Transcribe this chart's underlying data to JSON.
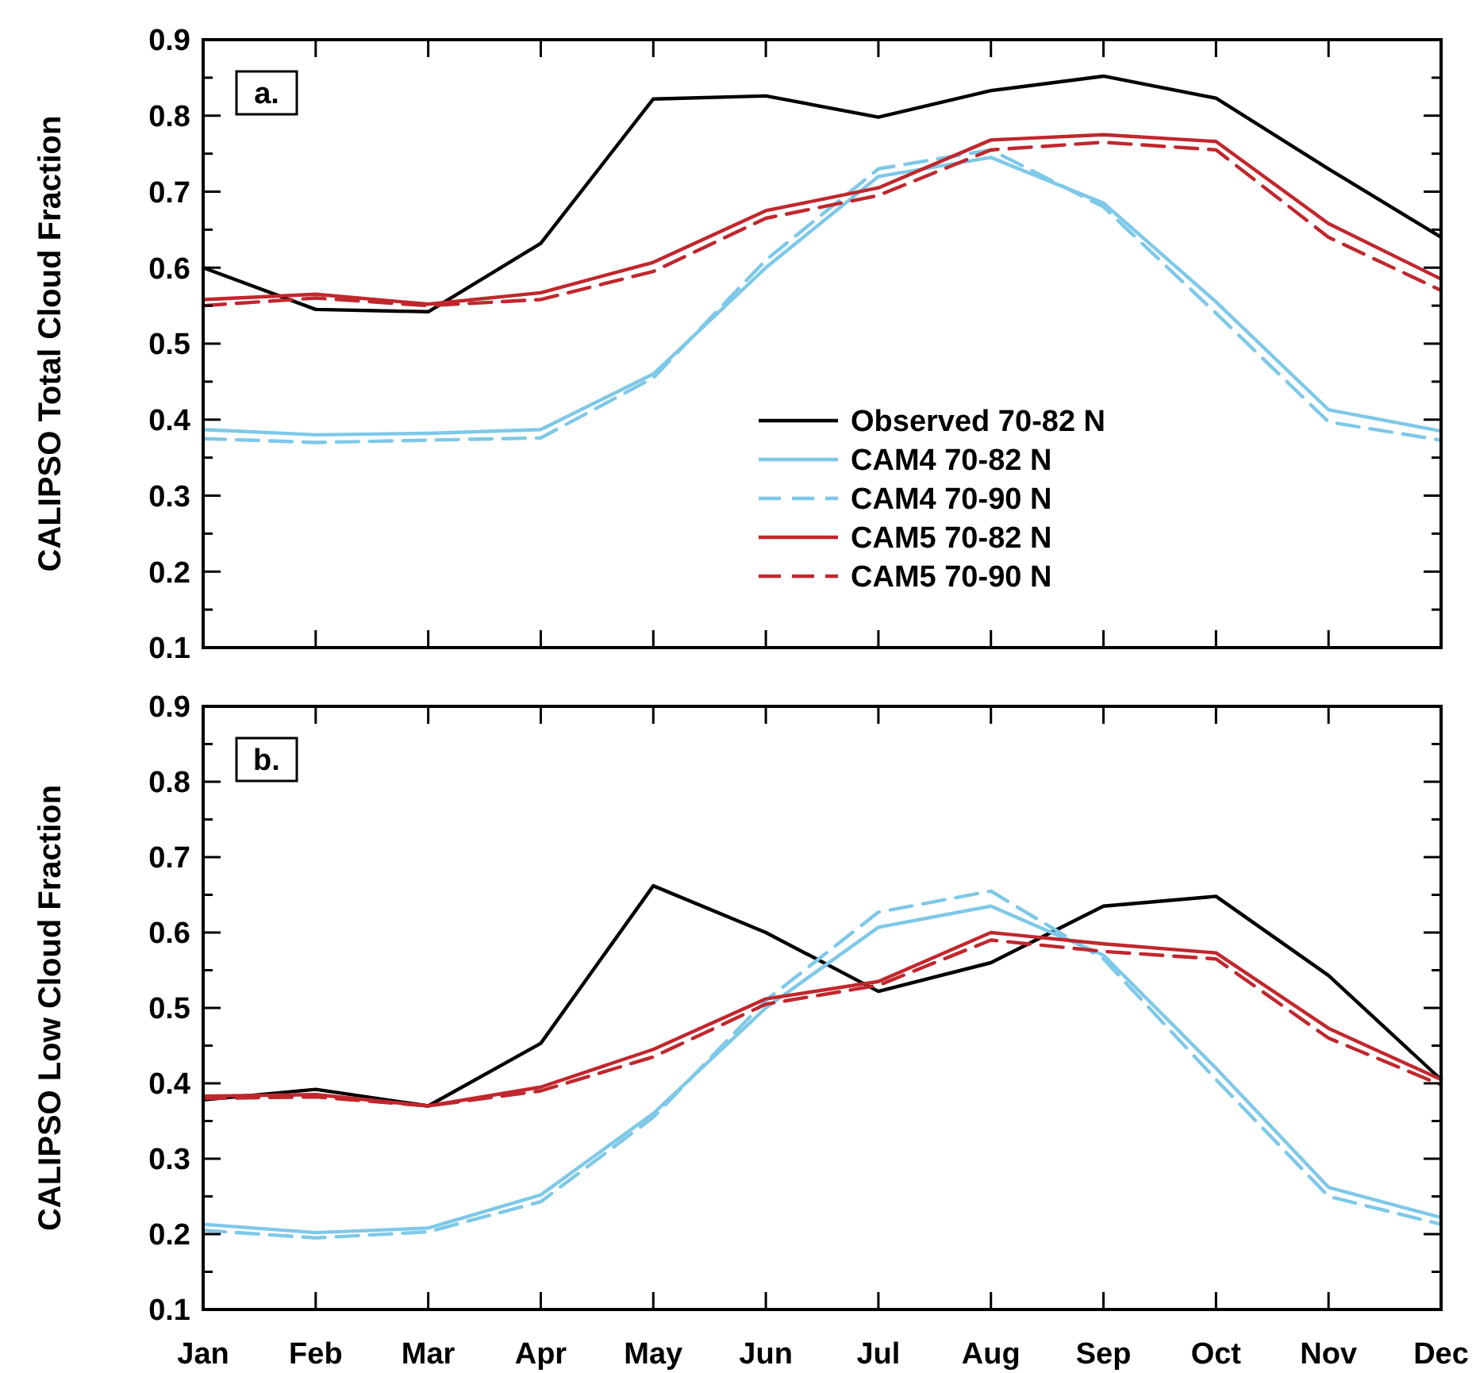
{
  "chart_data": [
    {
      "type": "line",
      "ylabel": "CALIPSO Total Cloud Fraction",
      "annotations": [
        "a."
      ],
      "categories": [
        null,
        null,
        null,
        null,
        null,
        null,
        null,
        null,
        null,
        null,
        null,
        null
      ],
      "ylim": [
        0.1,
        0.9
      ],
      "yticks": [
        0.1,
        {
          "value": 0.15,
          "label": null
        },
        0.2,
        {
          "value": 0.25,
          "label": null
        },
        0.3,
        {
          "value": 0.35,
          "label": null
        },
        0.4,
        {
          "value": 0.45,
          "label": null
        },
        0.5,
        {
          "value": 0.55,
          "label": null
        },
        0.6,
        {
          "value": 0.65,
          "label": null
        },
        0.7,
        {
          "value": 0.75,
          "label": null
        },
        0.8,
        {
          "value": 0.85,
          "label": null
        },
        0.9
      ],
      "tick_labels": "y",
      "grid": false,
      "legend": "center",
      "marker": "none",
      "series": [
        {
          "name": "Observed 70-82 N",
          "color": "#000000",
          "line_style": "solid",
          "values": [
            0.6,
            0.545,
            0.542,
            0.632,
            0.822,
            0.826,
            0.798,
            0.833,
            0.852,
            0.823,
            0.73,
            0.64
          ]
        },
        {
          "name": "CAM4 70-82 N",
          "color": "#7ec8e8",
          "line_style": "solid",
          "values": [
            0.387,
            0.38,
            0.382,
            0.387,
            0.46,
            0.6,
            0.72,
            0.745,
            0.685,
            0.555,
            0.413,
            0.385
          ]
        },
        {
          "name": "CAM4 70-90 N",
          "color": "#7ec8e8",
          "line_style": "dashed",
          "values": [
            0.375,
            0.37,
            0.373,
            0.376,
            0.455,
            0.61,
            0.73,
            0.755,
            0.68,
            0.54,
            0.397,
            0.373
          ]
        },
        {
          "name": "CAM5 70-82 N",
          "color": "#c0272d",
          "line_style": "solid",
          "values": [
            0.558,
            0.565,
            0.552,
            0.567,
            0.607,
            0.675,
            0.705,
            0.768,
            0.775,
            0.766,
            0.658,
            0.585
          ]
        },
        {
          "name": "CAM5 70-90 N",
          "color": "#c0272d",
          "line_style": "dashed",
          "values": [
            0.55,
            0.56,
            0.55,
            0.558,
            0.595,
            0.665,
            0.695,
            0.755,
            0.765,
            0.755,
            0.64,
            0.57
          ]
        }
      ]
    },
    {
      "type": "line",
      "ylabel": "CALIPSO Low Cloud Fraction",
      "annotations": [
        "b."
      ],
      "categories": [
        "Jan",
        "Feb",
        "Mar",
        "Apr",
        "May",
        "Jun",
        "Jul",
        "Aug",
        "Sep",
        "Oct",
        "Nov",
        "Dec"
      ],
      "ylim": [
        0.1,
        0.9
      ],
      "yticks": [
        0.1,
        {
          "value": 0.15,
          "label": null
        },
        0.2,
        {
          "value": 0.25,
          "label": null
        },
        0.3,
        {
          "value": 0.35,
          "label": null
        },
        0.4,
        {
          "value": 0.45,
          "label": null
        },
        0.5,
        {
          "value": 0.55,
          "label": null
        },
        0.6,
        {
          "value": 0.65,
          "label": null
        },
        0.7,
        {
          "value": 0.75,
          "label": null
        },
        0.8,
        {
          "value": 0.85,
          "label": null
        },
        0.9
      ],
      "grid": false,
      "legend": false,
      "marker": "none",
      "series": [
        {
          "color": "#000000",
          "line_style": "solid",
          "values": [
            0.378,
            0.392,
            0.37,
            0.453,
            0.662,
            0.6,
            0.522,
            0.56,
            0.635,
            0.648,
            0.543,
            0.405
          ]
        },
        {
          "color": "#7ec8e8",
          "line_style": "solid",
          "values": [
            0.213,
            0.202,
            0.208,
            0.252,
            0.36,
            0.5,
            0.607,
            0.635,
            0.57,
            0.42,
            0.262,
            0.222
          ]
        },
        {
          "color": "#7ec8e8",
          "line_style": "dashed",
          "values": [
            0.205,
            0.195,
            0.203,
            0.243,
            0.355,
            0.51,
            0.627,
            0.655,
            0.565,
            0.405,
            0.25,
            0.213
          ]
        },
        {
          "color": "#c0272d",
          "line_style": "solid",
          "values": [
            0.383,
            0.385,
            0.37,
            0.395,
            0.445,
            0.512,
            0.535,
            0.6,
            0.585,
            0.573,
            0.473,
            0.405
          ]
        },
        {
          "color": "#c0272d",
          "line_style": "dashed",
          "values": [
            0.38,
            0.382,
            0.37,
            0.39,
            0.435,
            0.505,
            0.53,
            0.59,
            0.575,
            0.565,
            0.46,
            0.398
          ]
        }
      ]
    }
  ]
}
